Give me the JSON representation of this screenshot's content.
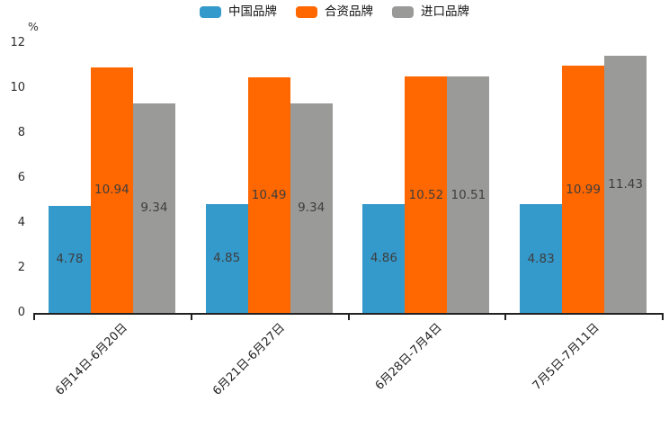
{
  "chart_data": {
    "type": "bar",
    "title": "",
    "unit_label": "%",
    "categories": [
      "6月14日-6月20日",
      "6月21日-6月27日",
      "6月28日-7月4日",
      "7月5日-7月11日"
    ],
    "series": [
      {
        "name": "中国品牌",
        "color": "#3499CB",
        "values": [
          4.78,
          4.85,
          4.86,
          4.83
        ]
      },
      {
        "name": "合资品牌",
        "color": "#FF6700",
        "values": [
          10.94,
          10.49,
          10.52,
          10.99
        ]
      },
      {
        "name": "进口品牌",
        "color": "#9A9A98",
        "values": [
          9.34,
          9.34,
          10.51,
          11.43
        ]
      }
    ],
    "y_axis": {
      "min": 0,
      "max": 12,
      "ticks": [
        0,
        2,
        4,
        6,
        8,
        10,
        12
      ]
    },
    "legend_position": "top-center",
    "grid": false,
    "value_label_position": "inside-center"
  },
  "colors": {
    "axis": "#222222",
    "tick_label": "#2b2b2b",
    "value_label": "#3e3e3e",
    "background": "#ffffff"
  }
}
